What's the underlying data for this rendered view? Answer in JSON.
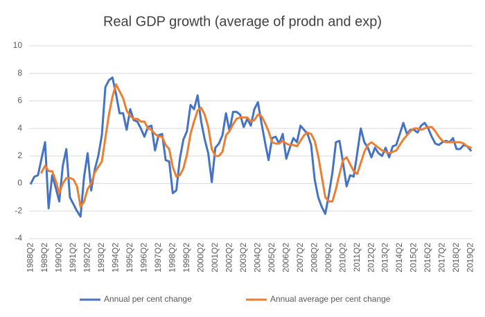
{
  "chart_data": {
    "type": "line",
    "title": "Real GDP growth (average of prodn and exp)",
    "categories": [
      "1988Q2",
      null,
      null,
      null,
      "1989Q2",
      null,
      null,
      null,
      "1990Q2",
      null,
      null,
      null,
      "1991Q2",
      null,
      null,
      null,
      "1992Q2",
      null,
      null,
      null,
      "1993Q2",
      null,
      null,
      null,
      "1994Q2",
      null,
      null,
      null,
      "1995Q2",
      null,
      null,
      null,
      "1996Q2",
      null,
      null,
      null,
      "1997Q2",
      null,
      null,
      null,
      "1998Q2",
      null,
      null,
      null,
      "1999Q2",
      null,
      null,
      null,
      "2000Q2",
      null,
      null,
      null,
      "2001Q2",
      null,
      null,
      null,
      "2002Q2",
      null,
      null,
      null,
      "2003Q2",
      null,
      null,
      null,
      "2004Q2",
      null,
      null,
      null,
      "2005Q2",
      null,
      null,
      null,
      "2006Q2",
      null,
      null,
      null,
      "2007Q2",
      null,
      null,
      null,
      "2008Q2",
      null,
      null,
      null,
      "2009Q2",
      null,
      null,
      null,
      "2010Q2",
      null,
      null,
      null,
      "2011Q2",
      null,
      null,
      null,
      "2012Q2",
      null,
      null,
      null,
      "2013Q2",
      null,
      null,
      null,
      "2014Q2",
      null,
      null,
      null,
      "2015Q2",
      null,
      null,
      null,
      "2016Q2",
      null,
      null,
      null,
      "2017Q2",
      null,
      null,
      null,
      "2018Q2",
      null,
      null,
      null,
      "2019Q2"
    ],
    "series": [
      {
        "name": "Annual per cent change",
        "color": "#4472c4",
        "values": [
          0.0,
          0.5,
          0.6,
          1.8,
          3.0,
          -1.8,
          0.6,
          -0.3,
          -1.3,
          1.3,
          2.5,
          -1.0,
          -1.5,
          -2.0,
          -2.4,
          0.5,
          2.2,
          -0.5,
          1.0,
          2.0,
          3.5,
          7.0,
          7.5,
          7.7,
          6.5,
          5.1,
          5.1,
          3.9,
          5.4,
          4.6,
          4.5,
          4.0,
          3.4,
          4.1,
          4.2,
          2.4,
          3.5,
          3.6,
          1.7,
          1.6,
          -0.7,
          -0.5,
          1.8,
          3.2,
          3.8,
          5.7,
          5.4,
          6.4,
          4.5,
          3.2,
          2.2,
          0.1,
          2.6,
          2.9,
          3.5,
          5.1,
          3.8,
          5.2,
          5.2,
          5.0,
          4.1,
          4.7,
          4.2,
          5.4,
          5.9,
          4.4,
          3.0,
          1.7,
          3.3,
          3.4,
          2.9,
          3.6,
          1.8,
          2.6,
          3.3,
          3.0,
          4.2,
          3.9,
          3.6,
          2.8,
          0.3,
          -1.0,
          -1.7,
          -2.2,
          -0.8,
          0.8,
          3.0,
          3.1,
          1.5,
          -0.2,
          0.6,
          0.5,
          2.2,
          4.0,
          3.0,
          2.6,
          1.9,
          2.6,
          2.2,
          2.0,
          2.6,
          1.9,
          2.7,
          2.8,
          3.6,
          4.4,
          3.6,
          3.9,
          3.9,
          3.7,
          4.2,
          4.4,
          4.0,
          3.4,
          2.9,
          2.8,
          3.0,
          3.1,
          3.0,
          3.3,
          2.5,
          2.5,
          2.8,
          2.7,
          2.4
        ]
      },
      {
        "name": "Annual average per cent change",
        "color": "#ed7d31",
        "values": [
          null,
          null,
          null,
          0.8,
          1.3,
          0.9,
          0.9,
          0.2,
          -0.7,
          0.0,
          0.4,
          0.4,
          0.3,
          -0.2,
          -1.7,
          -1.3,
          -0.4,
          0.0,
          0.8,
          1.2,
          1.6,
          3.3,
          5.0,
          6.3,
          7.2,
          6.7,
          6.2,
          5.3,
          4.9,
          4.7,
          4.7,
          4.5,
          4.5,
          4.0,
          3.9,
          3.6,
          3.4,
          3.4,
          2.8,
          2.5,
          1.2,
          0.5,
          0.6,
          1.1,
          2.1,
          3.6,
          4.5,
          5.3,
          5.5,
          5.0,
          4.1,
          2.5,
          2.0,
          2.0,
          2.3,
          3.5,
          3.8,
          4.3,
          4.7,
          4.8,
          4.8,
          4.8,
          4.5,
          4.6,
          5.0,
          4.9,
          4.4,
          3.8,
          3.0,
          2.9,
          2.9,
          3.1,
          2.9,
          2.8,
          2.8,
          2.7,
          3.1,
          3.5,
          3.7,
          3.6,
          3.1,
          2.0,
          0.5,
          -1.0,
          -1.3,
          -1.3,
          -0.4,
          0.7,
          1.7,
          1.9,
          1.4,
          0.9,
          0.7,
          1.5,
          2.3,
          2.8,
          3.0,
          2.8,
          2.6,
          2.4,
          2.3,
          2.2,
          2.3,
          2.4,
          2.8,
          3.2,
          3.5,
          3.8,
          4.0,
          4.0,
          3.9,
          4.0,
          4.1,
          4.1,
          3.8,
          3.4,
          3.1,
          3.0,
          3.0,
          3.0,
          3.0,
          3.0,
          2.9,
          2.7,
          2.6
        ]
      }
    ],
    "ylim": [
      -4,
      10
    ],
    "yticks": [
      -4,
      -2,
      0,
      2,
      4,
      6,
      8,
      10
    ],
    "grid": true,
    "legend": "bottom"
  }
}
